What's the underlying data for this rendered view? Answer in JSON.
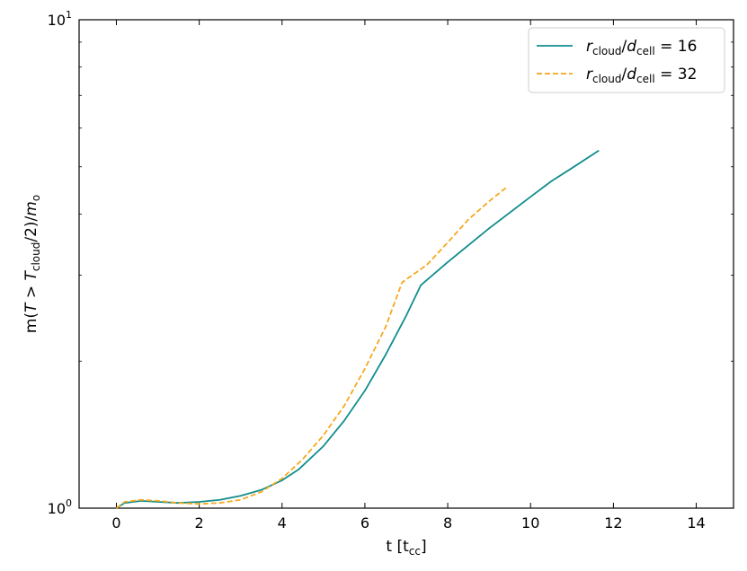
{
  "chart_data": {
    "type": "line",
    "xlabel": "t [t_cc]",
    "ylabel": "m(T > T_cloud/2)/m_o",
    "xlim": [
      -0.9,
      14.9
    ],
    "ylim": [
      1,
      10
    ],
    "yscale": "log",
    "grid": false,
    "legend_position": "top-right",
    "x_ticks": [
      0,
      2,
      4,
      6,
      8,
      10,
      12,
      14
    ],
    "y_ticks": [
      {
        "value": 1,
        "base": "10",
        "exp": "0"
      },
      {
        "value": 10,
        "base": "10",
        "exp": "1"
      }
    ],
    "colors": {
      "series_1": "#138d8d",
      "series_2": "#f5a81c"
    },
    "series": [
      {
        "label_num": "16",
        "style": "solid",
        "color": "#138d8d",
        "x": [
          0,
          0.2,
          0.6,
          1.0,
          1.5,
          2.0,
          2.5,
          3.0,
          3.5,
          4.0,
          4.4,
          5.0,
          5.5,
          6.0,
          6.5,
          7.0,
          7.35,
          8.0,
          9.0,
          10.0,
          10.5,
          11.0,
          11.65
        ],
        "y": [
          1.0,
          1.025,
          1.035,
          1.03,
          1.025,
          1.03,
          1.04,
          1.06,
          1.09,
          1.14,
          1.2,
          1.34,
          1.51,
          1.74,
          2.06,
          2.48,
          2.86,
          3.19,
          3.74,
          4.34,
          4.67,
          4.97,
          5.4
        ]
      },
      {
        "label_num": "32",
        "style": "dashed",
        "color": "#f5a81c",
        "x": [
          0,
          0.2,
          0.6,
          1.0,
          1.5,
          2.0,
          2.5,
          3.0,
          3.5,
          4.0,
          4.5,
          5.0,
          5.5,
          6.0,
          6.5,
          6.9,
          7.5,
          8.0,
          8.5,
          9.0,
          9.45
        ],
        "y": [
          1.0,
          1.03,
          1.04,
          1.035,
          1.025,
          1.02,
          1.025,
          1.04,
          1.08,
          1.15,
          1.26,
          1.41,
          1.62,
          1.93,
          2.35,
          2.9,
          3.15,
          3.5,
          3.9,
          4.25,
          4.56
        ]
      }
    ]
  }
}
